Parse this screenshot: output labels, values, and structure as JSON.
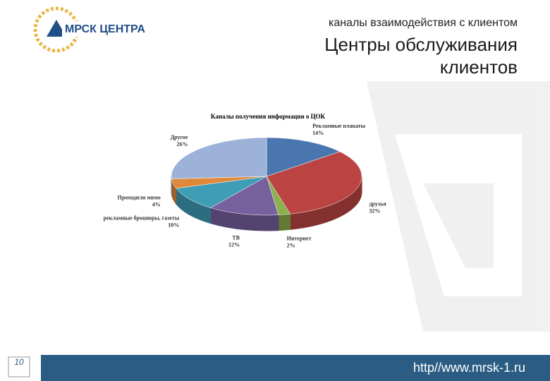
{
  "logo": {
    "text": "МРСК ЦЕНТРА"
  },
  "header": {
    "subtitle": "каналы взаимодействия с клиентом",
    "title_line1": "Центры обслуживания",
    "title_line2": "клиентов"
  },
  "footer": {
    "page": "10",
    "url": "http//www.mrsk-1.ru"
  },
  "chart_data": {
    "type": "pie",
    "title": "Каналы получения информации о ЦОК",
    "categories": [
      "Рекламные плакаты",
      "друзья",
      "Интернет",
      "ТВ",
      "рекламные брошюры, газеты",
      "Проходили мимо",
      "Другое"
    ],
    "values": [
      14,
      32,
      2,
      12,
      10,
      4,
      26
    ],
    "value_labels": [
      "14%",
      "32%",
      "2%",
      "12%",
      "10%",
      "4%",
      "26%"
    ],
    "colors": [
      "#4a76b0",
      "#bb4442",
      "#8bb04e",
      "#77609e",
      "#3f9db5",
      "#e0893a",
      "#9cb2d8"
    ]
  }
}
